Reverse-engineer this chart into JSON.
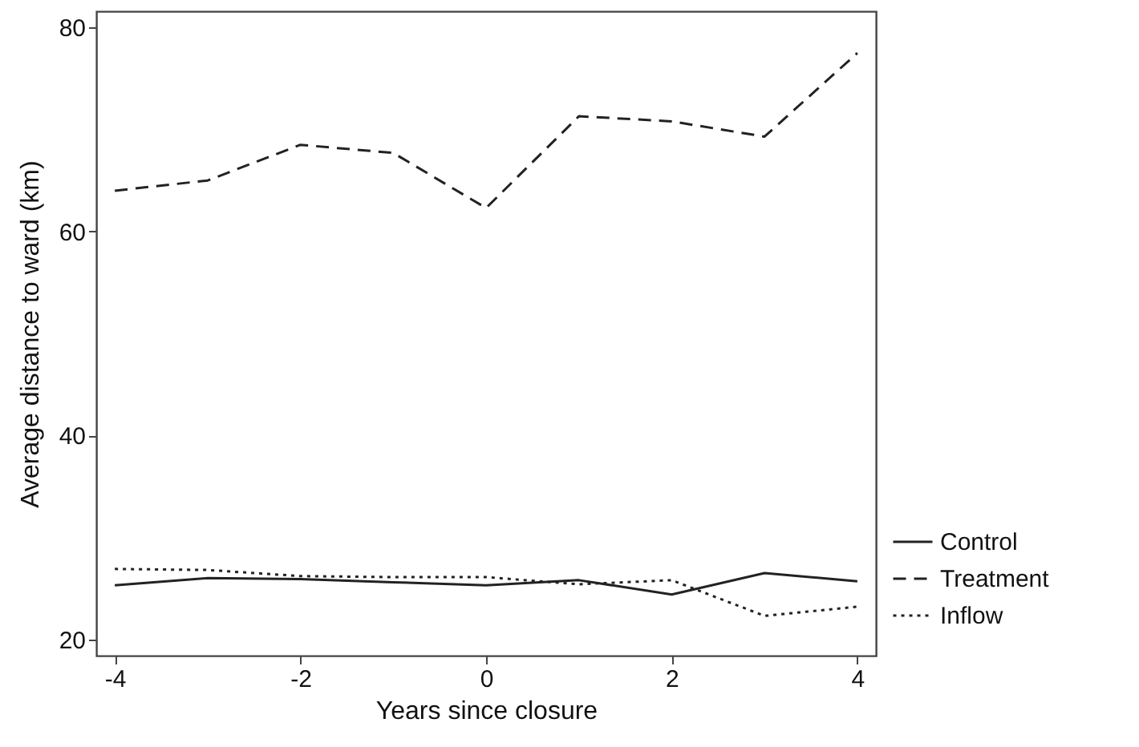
{
  "chart_data": {
    "type": "line",
    "xlabel": "Years since closure",
    "ylabel": "Average distance to ward (km)",
    "x": [
      -4,
      -3,
      -2,
      -1,
      0,
      1,
      2,
      3,
      4
    ],
    "xlim": [
      -4.2,
      4.2
    ],
    "xticks": [
      -4,
      -2,
      0,
      2,
      4
    ],
    "ylim": [
      18.4,
      81.6
    ],
    "yticks": [
      20,
      40,
      60,
      80
    ],
    "grid": false,
    "legend": "right",
    "marker": "none",
    "series": [
      {
        "name": "Control",
        "color": "#222222",
        "line_style": "solid",
        "values": [
          25.3,
          26,
          25.9,
          25.6,
          25.3,
          25.8,
          24.4,
          26.5,
          25.7
        ]
      },
      {
        "name": "Treatment",
        "color": "#222222",
        "line_style": "dashed",
        "values": [
          64,
          65,
          68.5,
          67.7,
          62.3,
          71.3,
          70.8,
          69.3,
          77.5
        ]
      },
      {
        "name": "Inflow",
        "color": "#222222",
        "line_style": "dotted",
        "values": [
          26.9,
          26.8,
          26.2,
          26.1,
          26.1,
          25.4,
          25.8,
          22.3,
          23.2
        ]
      }
    ]
  }
}
